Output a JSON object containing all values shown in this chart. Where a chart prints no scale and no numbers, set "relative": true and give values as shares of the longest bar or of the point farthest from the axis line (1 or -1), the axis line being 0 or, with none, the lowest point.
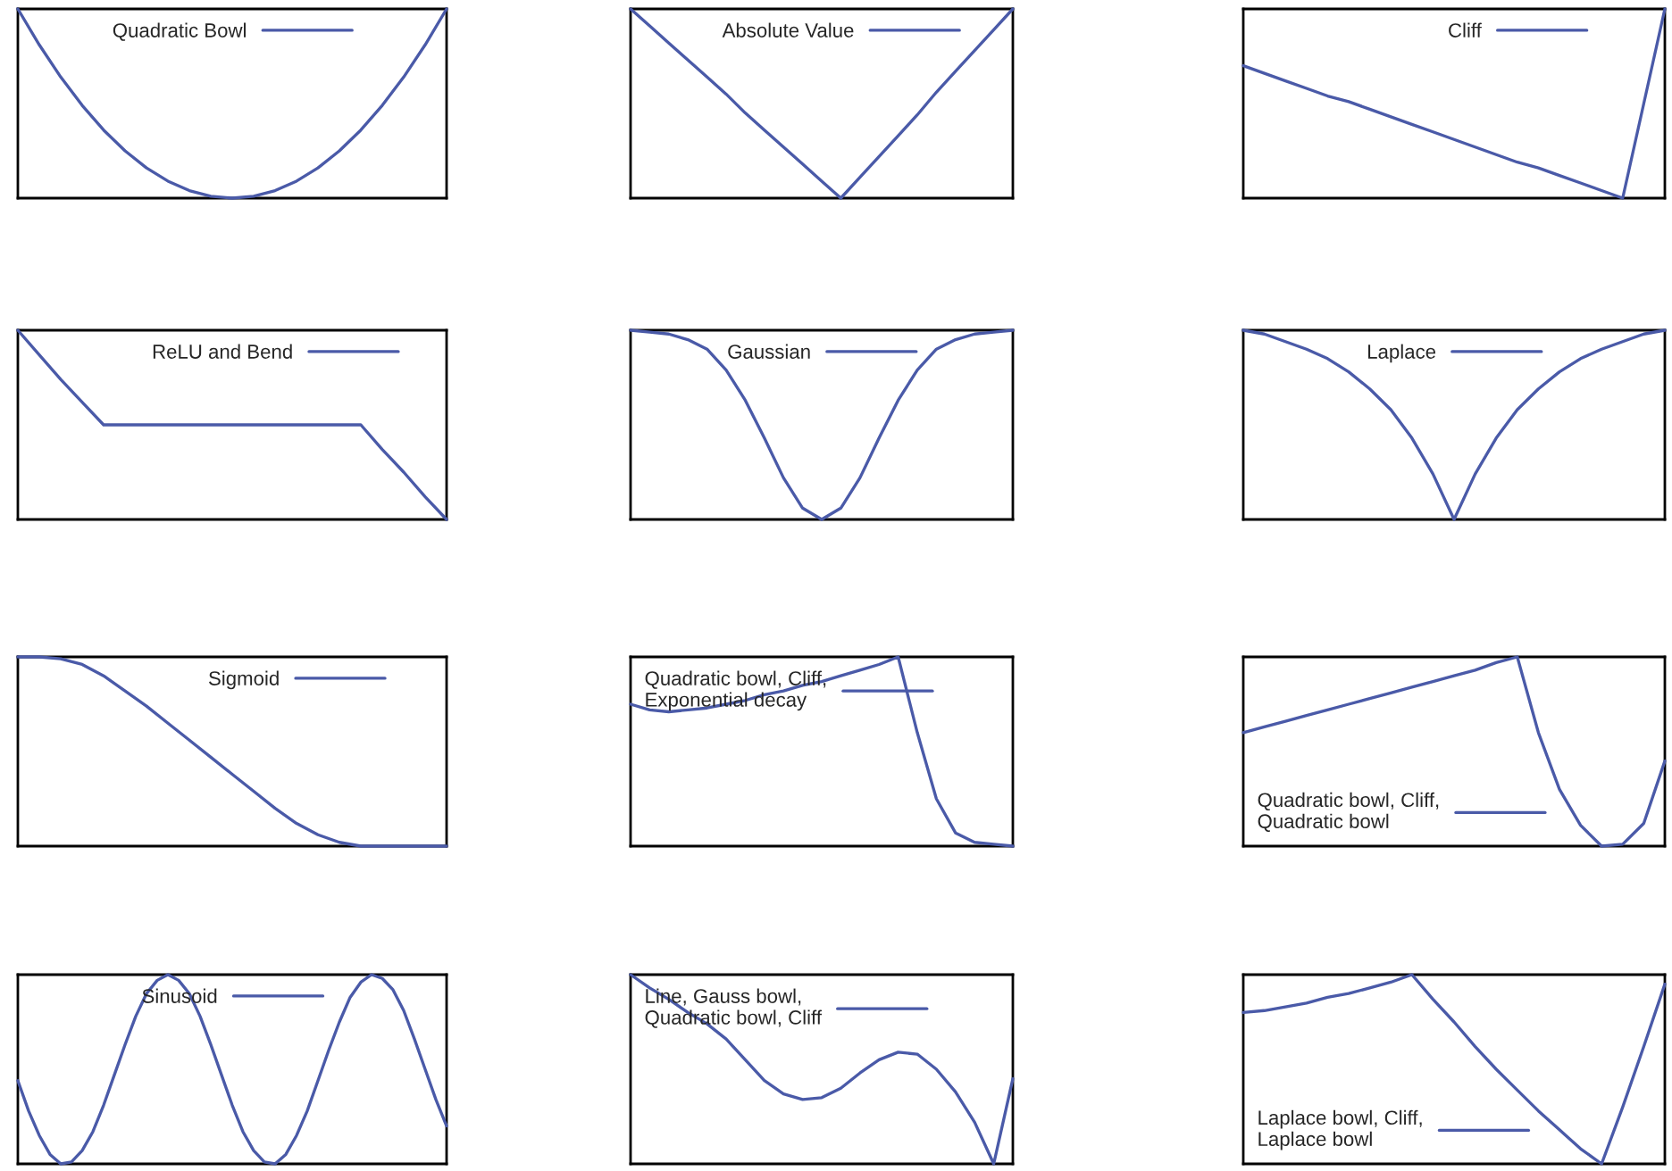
{
  "chart_data": [
    {
      "type": "line",
      "relative": true,
      "legend": "top",
      "categories": [
        null,
        null,
        null,
        null,
        null,
        null,
        null,
        null,
        null,
        null,
        null,
        null,
        null,
        null,
        null,
        null,
        null,
        null,
        null,
        null,
        null
      ],
      "series": [
        {
          "name": "Quadratic Bowl",
          "color": "#4a5aa8",
          "values": [
            1,
            0.81,
            0.64,
            0.49,
            0.36,
            0.25,
            0.16,
            0.09,
            0.04,
            0.01,
            0,
            0.01,
            0.04,
            0.09,
            0.16,
            0.25,
            0.36,
            0.49,
            0.64,
            0.81,
            1
          ]
        }
      ]
    },
    {
      "type": "line",
      "relative": true,
      "legend": "top",
      "categories": [
        null,
        null,
        null,
        null,
        null,
        null,
        null,
        null,
        null,
        null,
        null,
        null,
        null,
        null,
        null,
        null,
        null,
        null,
        null,
        null,
        null
      ],
      "series": [
        {
          "name": "Absolute Value",
          "color": "#4a5aa8",
          "values": [
            1,
            0.91,
            0.82,
            0.73,
            0.64,
            0.55,
            0.45,
            0.36,
            0.27,
            0.18,
            0.09,
            0,
            0.11,
            0.22,
            0.33,
            0.44,
            0.56,
            0.67,
            0.78,
            0.89,
            1
          ]
        }
      ]
    },
    {
      "type": "line",
      "relative": true,
      "legend": "top",
      "categories": [
        null,
        null,
        null,
        null,
        null,
        null,
        null,
        null,
        null,
        null,
        null,
        null,
        null,
        null,
        null,
        null,
        null,
        null,
        null,
        null,
        null
      ],
      "series": [
        {
          "name": "Cliff",
          "color": "#4a5aa8",
          "values": [
            0.7,
            0.66,
            0.62,
            0.58,
            0.54,
            0.51,
            0.47,
            0.43,
            0.39,
            0.35,
            0.31,
            0.27,
            0.23,
            0.19,
            0.16,
            0.12,
            0.08,
            0.04,
            0,
            0.5,
            1
          ]
        }
      ]
    },
    {
      "type": "line",
      "relative": true,
      "legend": "top",
      "categories": [
        null,
        null,
        null,
        null,
        null,
        null,
        null,
        null,
        null,
        null,
        null,
        null,
        null,
        null,
        null,
        null,
        null,
        null,
        null,
        null,
        null
      ],
      "series": [
        {
          "name": "ReLU and Bend",
          "color": "#4a5aa8",
          "values": [
            1,
            0.87,
            0.74,
            0.62,
            0.5,
            0.5,
            0.5,
            0.5,
            0.5,
            0.5,
            0.5,
            0.5,
            0.5,
            0.5,
            0.5,
            0.5,
            0.5,
            0.37,
            0.25,
            0.12,
            0
          ]
        }
      ]
    },
    {
      "type": "line",
      "relative": true,
      "legend": "top",
      "categories": [
        null,
        null,
        null,
        null,
        null,
        null,
        null,
        null,
        null,
        null,
        null,
        null,
        null,
        null,
        null,
        null,
        null,
        null,
        null,
        null,
        null
      ],
      "series": [
        {
          "name": "Gaussian",
          "color": "#4a5aa8",
          "values": [
            1,
            0.99,
            0.98,
            0.95,
            0.9,
            0.79,
            0.63,
            0.43,
            0.22,
            0.06,
            0,
            0.06,
            0.22,
            0.43,
            0.63,
            0.79,
            0.9,
            0.95,
            0.98,
            0.99,
            1
          ]
        }
      ]
    },
    {
      "type": "line",
      "relative": true,
      "legend": "top",
      "categories": [
        null,
        null,
        null,
        null,
        null,
        null,
        null,
        null,
        null,
        null,
        null,
        null,
        null,
        null,
        null,
        null,
        null,
        null,
        null,
        null,
        null
      ],
      "series": [
        {
          "name": "Laplace",
          "color": "#4a5aa8",
          "values": [
            1,
            0.98,
            0.94,
            0.9,
            0.85,
            0.78,
            0.69,
            0.58,
            0.43,
            0.24,
            0,
            0.24,
            0.43,
            0.58,
            0.69,
            0.78,
            0.85,
            0.9,
            0.94,
            0.98,
            1
          ]
        }
      ]
    },
    {
      "type": "line",
      "relative": true,
      "legend": "top",
      "categories": [
        null,
        null,
        null,
        null,
        null,
        null,
        null,
        null,
        null,
        null,
        null,
        null,
        null,
        null,
        null,
        null,
        null,
        null,
        null,
        null,
        null
      ],
      "series": [
        {
          "name": "Sigmoid",
          "color": "#4a5aa8",
          "values": [
            1,
            1,
            0.99,
            0.96,
            0.9,
            0.82,
            0.74,
            0.65,
            0.56,
            0.47,
            0.38,
            0.29,
            0.2,
            0.12,
            0.06,
            0.02,
            0,
            0,
            0,
            0,
            0
          ]
        }
      ]
    },
    {
      "type": "line",
      "relative": true,
      "legend": "top left",
      "categories": [
        null,
        null,
        null,
        null,
        null,
        null,
        null,
        null,
        null,
        null,
        null,
        null,
        null,
        null,
        null,
        null,
        null,
        null,
        null,
        null,
        null
      ],
      "series": [
        {
          "name": "Quadratic bowl, Cliff,\nExponential decay",
          "color": "#4a5aa8",
          "values": [
            0.75,
            0.72,
            0.71,
            0.72,
            0.73,
            0.75,
            0.77,
            0.8,
            0.82,
            0.85,
            0.87,
            0.9,
            0.93,
            0.96,
            1,
            0.6,
            0.25,
            0.07,
            0.02,
            0.01,
            0
          ]
        }
      ]
    },
    {
      "type": "line",
      "relative": true,
      "legend": "bottom left",
      "categories": [
        null,
        null,
        null,
        null,
        null,
        null,
        null,
        null,
        null,
        null,
        null,
        null,
        null,
        null,
        null,
        null,
        null,
        null,
        null,
        null,
        null
      ],
      "series": [
        {
          "name": "Quadratic bowl, Cliff,\nQuadratic bowl",
          "color": "#4a5aa8",
          "values": [
            0.6,
            0.63,
            0.66,
            0.69,
            0.72,
            0.75,
            0.78,
            0.81,
            0.84,
            0.87,
            0.9,
            0.93,
            0.97,
            1,
            0.6,
            0.3,
            0.11,
            0,
            0.01,
            0.12,
            0.45
          ]
        }
      ]
    },
    {
      "type": "line",
      "relative": true,
      "legend": "top",
      "categories": [
        null,
        null,
        null,
        null,
        null,
        null,
        null,
        null,
        null,
        null,
        null,
        null,
        null,
        null,
        null,
        null,
        null,
        null,
        null,
        null,
        null,
        null,
        null,
        null,
        null,
        null,
        null,
        null,
        null,
        null,
        null,
        null,
        null,
        null,
        null,
        null,
        null,
        null,
        null,
        null,
        null
      ],
      "series": [
        {
          "name": "Sinusoid",
          "color": "#4a5aa8",
          "values": [
            0.44,
            0.28,
            0.15,
            0.05,
            0,
            0.01,
            0.07,
            0.17,
            0.31,
            0.47,
            0.63,
            0.78,
            0.9,
            0.97,
            1,
            0.97,
            0.9,
            0.78,
            0.63,
            0.47,
            0.31,
            0.17,
            0.07,
            0.01,
            0,
            0.05,
            0.15,
            0.28,
            0.44,
            0.6,
            0.75,
            0.88,
            0.96,
            1,
            0.98,
            0.92,
            0.81,
            0.66,
            0.5,
            0.34,
            0.2
          ]
        }
      ]
    },
    {
      "type": "line",
      "relative": true,
      "legend": "top left",
      "categories": [
        null,
        null,
        null,
        null,
        null,
        null,
        null,
        null,
        null,
        null,
        null,
        null,
        null,
        null,
        null,
        null,
        null,
        null,
        null,
        null,
        null
      ],
      "series": [
        {
          "name": "Line, Gauss bowl,\nQuadratic bowl, Cliff",
          "color": "#4a5aa8",
          "values": [
            1,
            0.93,
            0.87,
            0.8,
            0.74,
            0.66,
            0.55,
            0.44,
            0.37,
            0.34,
            0.35,
            0.4,
            0.48,
            0.55,
            0.59,
            0.58,
            0.5,
            0.38,
            0.22,
            0,
            0.45
          ]
        }
      ]
    },
    {
      "type": "line",
      "relative": true,
      "legend": "bottom left",
      "categories": [
        null,
        null,
        null,
        null,
        null,
        null,
        null,
        null,
        null,
        null,
        null,
        null,
        null,
        null,
        null,
        null,
        null,
        null,
        null,
        null,
        null
      ],
      "series": [
        {
          "name": "Laplace bowl, Cliff,\nLaplace bowl",
          "color": "#4a5aa8",
          "values": [
            0.8,
            0.81,
            0.83,
            0.85,
            0.88,
            0.9,
            0.93,
            0.96,
            1,
            0.87,
            0.75,
            0.62,
            0.5,
            0.39,
            0.28,
            0.18,
            0.08,
            0,
            0.3,
            0.62,
            0.95
          ]
        }
      ]
    }
  ]
}
